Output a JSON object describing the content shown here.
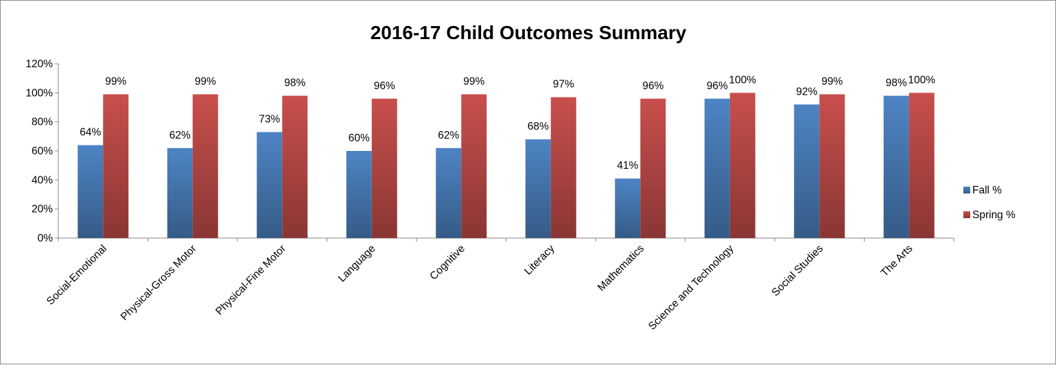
{
  "chart_data": {
    "type": "bar",
    "title": "2016-17 Child Outcomes Summary",
    "xlabel": "",
    "ylabel": "",
    "ylim": [
      0,
      1.2
    ],
    "yticks": [
      "0%",
      "20%",
      "40%",
      "60%",
      "80%",
      "100%",
      "120%"
    ],
    "categories": [
      "Social-Emotional",
      "Physical-Gross Motor",
      "Physical-Fine Motor",
      "Language",
      "Cognitive",
      "Literacy",
      "Mathematics",
      "Science and Technology",
      "Social Studies",
      "The Arts"
    ],
    "series": [
      {
        "name": "Fall %",
        "color": "#4a7ebb",
        "values": [
          0.64,
          0.62,
          0.73,
          0.6,
          0.62,
          0.68,
          0.41,
          0.96,
          0.92,
          0.98
        ],
        "labels": [
          "64%",
          "62%",
          "73%",
          "60%",
          "62%",
          "68%",
          "41%",
          "96%",
          "92%",
          "98%"
        ]
      },
      {
        "name": "Spring %",
        "color": "#be4b48",
        "values": [
          0.99,
          0.99,
          0.98,
          0.96,
          0.99,
          0.97,
          0.96,
          1.0,
          0.99,
          1.0
        ],
        "labels": [
          "99%",
          "99%",
          "98%",
          "96%",
          "99%",
          "97%",
          "96%",
          "100%",
          "99%",
          "100%"
        ]
      }
    ],
    "grid": false,
    "legend_position": "right"
  }
}
